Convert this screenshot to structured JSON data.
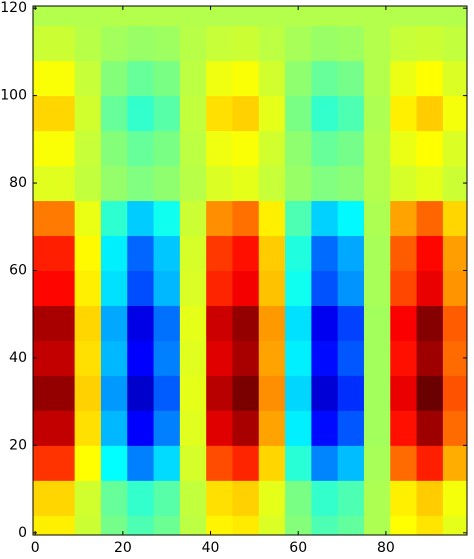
{
  "chart_data": {
    "type": "heatmap",
    "colormap": "jet",
    "clim": [
      -1.1,
      0.9
    ],
    "x": [
      0,
      6,
      12,
      18,
      24,
      30,
      36,
      42,
      48,
      54,
      60,
      66,
      72,
      78,
      84,
      90,
      96
    ],
    "y": [
      0,
      8,
      16,
      24,
      32,
      40,
      48,
      56,
      64,
      72,
      80,
      88,
      96,
      104,
      112,
      120
    ],
    "values": [
      [
        0.18,
        0.18,
        0.05,
        -0.12,
        -0.2,
        -0.14,
        0.02,
        0.17,
        0.19,
        0.08,
        -0.09,
        -0.2,
        -0.16,
        -0.01,
        0.15,
        0.2,
        0.1
      ],
      [
        0.23,
        0.23,
        0.06,
        -0.15,
        -0.25,
        -0.18,
        0.03,
        0.21,
        0.24,
        0.1,
        -0.11,
        -0.25,
        -0.2,
        -0.01,
        0.18,
        0.25,
        0.13
      ],
      [
        0.55,
        0.55,
        0.15,
        -0.35,
        -0.6,
        -0.42,
        0.07,
        0.5,
        0.58,
        0.23,
        -0.27,
        -0.59,
        -0.48,
        -0.02,
        0.44,
        0.59,
        0.31
      ],
      [
        0.77,
        0.77,
        0.21,
        -0.49,
        -0.85,
        -0.6,
        0.09,
        0.71,
        0.82,
        0.33,
        -0.38,
        -0.83,
        -0.68,
        -0.03,
        0.62,
        0.84,
        0.44
      ],
      [
        0.86,
        0.86,
        0.24,
        -0.55,
        -0.95,
        -0.67,
        0.1,
        0.79,
        0.91,
        0.37,
        -0.43,
        -0.93,
        -0.76,
        -0.03,
        0.69,
        0.94,
        0.49
      ],
      [
        0.77,
        0.77,
        0.21,
        -0.49,
        -0.85,
        -0.6,
        0.09,
        0.71,
        0.82,
        0.33,
        -0.38,
        -0.83,
        -0.68,
        -0.03,
        0.62,
        0.84,
        0.44
      ],
      [
        0.82,
        0.82,
        0.23,
        -0.52,
        -0.9,
        -0.63,
        0.1,
        0.75,
        0.86,
        0.35,
        -0.41,
        -0.88,
        -0.72,
        -0.03,
        0.66,
        0.89,
        0.47
      ],
      [
        0.64,
        0.64,
        0.18,
        -0.41,
        -0.7,
        -0.49,
        0.08,
        0.58,
        0.67,
        0.27,
        -0.32,
        -0.69,
        -0.56,
        -0.02,
        0.51,
        0.69,
        0.36
      ],
      [
        0.59,
        0.59,
        0.16,
        -0.38,
        -0.65,
        -0.46,
        0.07,
        0.54,
        0.62,
        0.25,
        -0.29,
        -0.64,
        -0.52,
        -0.02,
        0.47,
        0.64,
        0.34
      ],
      [
        0.41,
        0.41,
        0.11,
        -0.26,
        -0.45,
        -0.32,
        0.05,
        0.37,
        0.43,
        0.18,
        -0.2,
        -0.44,
        -0.36,
        -0.01,
        0.33,
        0.45,
        0.23
      ],
      [
        0.09,
        0.09,
        0.03,
        -0.06,
        -0.1,
        -0.07,
        0.01,
        0.08,
        0.1,
        0.04,
        -0.05,
        -0.1,
        -0.08,
        0,
        0.07,
        0.1,
        0.05
      ],
      [
        0.14,
        0.14,
        0.04,
        -0.09,
        -0.15,
        -0.11,
        0.02,
        0.12,
        0.14,
        0.06,
        -0.07,
        -0.15,
        -0.12,
        0,
        0.11,
        0.15,
        0.08
      ],
      [
        0.23,
        0.23,
        0.06,
        -0.15,
        -0.25,
        -0.18,
        0.03,
        0.21,
        0.24,
        0.1,
        -0.11,
        -0.25,
        -0.2,
        -0.01,
        0.18,
        0.25,
        0.13
      ],
      [
        0.14,
        0.14,
        0.04,
        -0.09,
        -0.15,
        -0.11,
        0.02,
        0.12,
        0.14,
        0.06,
        -0.07,
        -0.15,
        -0.12,
        0,
        0.11,
        0.15,
        0.08
      ],
      [
        0.05,
        0.05,
        0.01,
        -0.03,
        -0.05,
        -0.04,
        0.01,
        0.04,
        0.05,
        0.02,
        -0.02,
        -0.05,
        -0.04,
        0,
        0.04,
        0.05,
        0.03
      ],
      [
        0,
        0,
        0,
        0,
        0,
        0,
        0,
        0,
        0,
        0,
        0,
        0,
        0,
        0,
        0,
        0,
        0
      ]
    ],
    "xlim": [
      -0.5,
      98.5
    ],
    "ylim": [
      -0.5,
      120.5
    ],
    "xticks": [
      0,
      20,
      40,
      60,
      80
    ],
    "yticks": [
      0,
      20,
      40,
      60,
      80,
      100,
      120
    ]
  }
}
